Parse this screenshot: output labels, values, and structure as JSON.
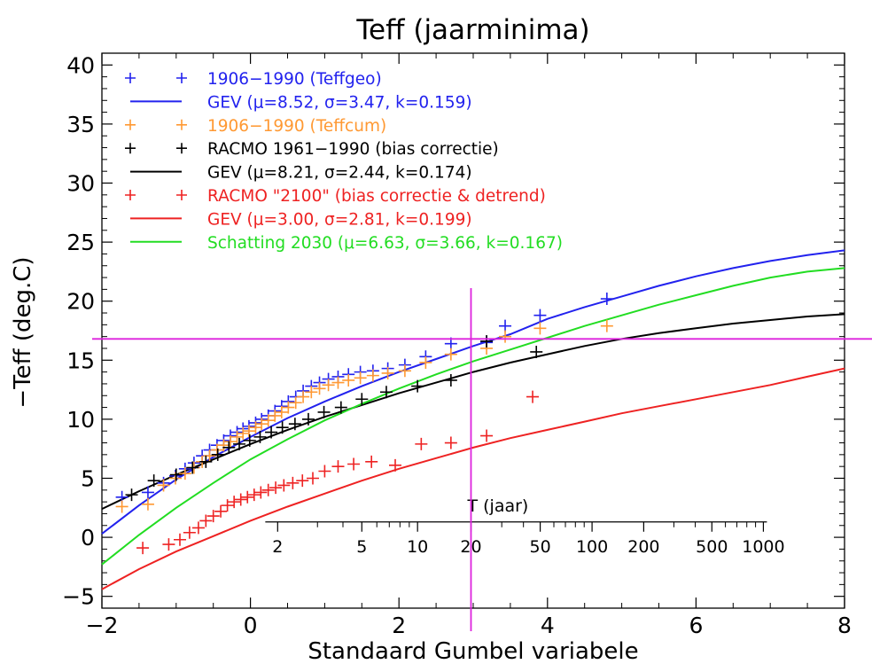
{
  "chart_data": {
    "type": "scatter",
    "title": "Teff (jaarminima)",
    "xlabel": "Standaard Gumbel variabele",
    "ylabel": "−Teff (deg.C)",
    "xlim": [
      -2,
      8
    ],
    "ylim": [
      -6,
      41
    ],
    "xticks": [
      -2,
      0,
      2,
      4,
      6,
      8
    ],
    "yticks": [
      -5,
      0,
      5,
      10,
      15,
      20,
      25,
      30,
      35,
      40
    ],
    "tick_labels_x": [
      "−2",
      "0",
      "2",
      "4",
      "6",
      "8"
    ],
    "tick_labels_y": [
      "−5",
      "0",
      "5",
      "10",
      "15",
      "20",
      "25",
      "30",
      "35",
      "40"
    ],
    "grid": false,
    "legend_position": "top-left",
    "colors": {
      "blue": "#2222ee",
      "orange": "#ff9933",
      "black": "#000000",
      "red": "#ee2222",
      "green": "#22dd22",
      "magenta": "#dd22dd"
    },
    "reference_lines": {
      "horizontal_y": 16.8,
      "vertical_x": 2.97
    },
    "return_period_axis": {
      "label": "T (jaar)",
      "y_value": 1.3,
      "ticks": [
        2,
        5,
        10,
        20,
        50,
        100,
        200,
        500,
        1000
      ],
      "tick_labels": [
        "2",
        "5",
        "10",
        "20",
        "50",
        "100",
        "200",
        "500",
        "1000"
      ]
    },
    "series": [
      {
        "name": "1906−1990 (Teffgeo)",
        "kind": "points",
        "color": "#2222ee",
        "x": [
          -1.73,
          -1.38,
          -1.17,
          -1.01,
          -0.88,
          -0.76,
          -0.65,
          -0.55,
          -0.45,
          -0.36,
          -0.27,
          -0.18,
          -0.1,
          -0.02,
          0.07,
          0.15,
          0.24,
          0.33,
          0.42,
          0.51,
          0.61,
          0.71,
          0.82,
          0.93,
          1.05,
          1.18,
          1.32,
          1.48,
          1.65,
          1.85,
          2.08,
          2.36,
          2.7,
          3.18,
          3.43,
          3.9,
          4.8
        ],
        "y": [
          3.4,
          3.8,
          4.6,
          5.2,
          5.8,
          6.3,
          6.9,
          7.4,
          7.8,
          8.2,
          8.6,
          8.9,
          9.2,
          9.4,
          9.7,
          10.0,
          10.3,
          10.7,
          11.1,
          11.5,
          11.9,
          12.4,
          12.8,
          13.1,
          13.4,
          13.6,
          13.8,
          14.0,
          14.1,
          14.3,
          14.6,
          15.3,
          16.4,
          16.5,
          17.9,
          18.8,
          20.2
        ]
      },
      {
        "name": "GEV (μ=8.52, σ=3.47, k=0.159)",
        "kind": "line",
        "color": "#2222ee",
        "x": [
          -2,
          -1.5,
          -1,
          -0.5,
          0,
          0.5,
          1,
          1.5,
          2,
          2.5,
          3,
          3.5,
          4,
          4.5,
          5,
          5.5,
          6,
          6.5,
          7,
          7.5,
          8
        ],
        "y": [
          0.3,
          2.7,
          4.9,
          6.8,
          8.5,
          10.1,
          11.5,
          12.8,
          14.0,
          15.1,
          16.2,
          17.2,
          18.5,
          19.5,
          20.4,
          21.3,
          22.1,
          22.8,
          23.4,
          23.9,
          24.3
        ]
      },
      {
        "name": "1906−1990 (Teffcum)",
        "kind": "points",
        "color": "#ff9933",
        "x": [
          -1.73,
          -1.38,
          -1.17,
          -1.01,
          -0.88,
          -0.76,
          -0.65,
          -0.55,
          -0.45,
          -0.36,
          -0.27,
          -0.18,
          -0.1,
          -0.02,
          0.07,
          0.15,
          0.24,
          0.33,
          0.42,
          0.51,
          0.61,
          0.71,
          0.82,
          0.93,
          1.05,
          1.18,
          1.32,
          1.48,
          1.65,
          1.85,
          2.08,
          2.36,
          2.7,
          3.18,
          3.43,
          3.9,
          4.8
        ],
        "y": [
          2.6,
          2.8,
          4.4,
          5.0,
          5.4,
          5.9,
          6.4,
          6.9,
          7.4,
          7.8,
          8.1,
          8.5,
          8.8,
          9.0,
          9.3,
          9.6,
          9.9,
          10.3,
          10.6,
          11.0,
          11.4,
          11.9,
          12.3,
          12.6,
          12.9,
          13.1,
          13.3,
          13.5,
          13.7,
          13.9,
          14.1,
          14.8,
          15.5,
          16.0,
          17.0,
          17.7,
          17.9
        ]
      },
      {
        "name": "RACMO 1961−1990 (bias correctie)",
        "kind": "points",
        "color": "#000000",
        "x": [
          -1.6,
          -1.3,
          -1.0,
          -0.78,
          -0.6,
          -0.44,
          -0.29,
          -0.15,
          -0.01,
          0.13,
          0.28,
          0.43,
          0.6,
          0.78,
          0.99,
          1.22,
          1.5,
          1.83,
          2.25,
          2.7,
          3.18,
          3.85
        ],
        "y": [
          3.6,
          4.8,
          5.3,
          5.9,
          6.4,
          7.0,
          7.6,
          7.9,
          8.2,
          8.5,
          8.9,
          9.3,
          9.6,
          10.0,
          10.6,
          11.0,
          11.7,
          12.3,
          12.8,
          13.3,
          16.6,
          15.7
        ]
      },
      {
        "name": "GEV (μ=8.21, σ=2.44, k=0.174)",
        "kind": "line",
        "color": "#000000",
        "x": [
          -2,
          -1.5,
          -1,
          -0.5,
          0,
          0.5,
          1,
          1.5,
          2,
          2.5,
          3,
          3.5,
          4,
          4.5,
          5,
          5.5,
          6,
          6.5,
          7,
          7.5,
          8
        ],
        "y": [
          2.4,
          3.9,
          5.3,
          6.6,
          7.9,
          9.1,
          10.2,
          11.2,
          12.2,
          13.1,
          14.0,
          14.8,
          15.5,
          16.2,
          16.8,
          17.3,
          17.7,
          18.1,
          18.4,
          18.7,
          18.9
        ]
      },
      {
        "name": "RACMO \"2100\" (bias correctie & detrend)",
        "kind": "points",
        "color": "#ee2222",
        "x": [
          -1.45,
          -1.1,
          -0.95,
          -0.82,
          -0.7,
          -0.6,
          -0.5,
          -0.4,
          -0.31,
          -0.22,
          -0.13,
          -0.04,
          0.05,
          0.14,
          0.24,
          0.34,
          0.45,
          0.57,
          0.7,
          0.84,
          1.0,
          1.18,
          1.39,
          1.63,
          1.95,
          2.3,
          2.7,
          3.18,
          3.8
        ],
        "y": [
          -0.9,
          -0.6,
          -0.2,
          0.4,
          0.8,
          1.4,
          1.8,
          2.2,
          2.7,
          3.0,
          3.2,
          3.4,
          3.6,
          3.8,
          4.0,
          4.2,
          4.4,
          4.6,
          4.8,
          5.0,
          5.6,
          6.0,
          6.2,
          6.4,
          6.1,
          7.9,
          8.0,
          8.6,
          11.9
        ]
      },
      {
        "name": "GEV (μ=3.00, σ=2.81, k=0.199)",
        "kind": "line",
        "color": "#ee2222",
        "x": [
          -2,
          -1.5,
          -1,
          -0.5,
          0,
          0.5,
          1,
          1.5,
          2,
          2.5,
          3,
          3.5,
          4,
          4.5,
          5,
          5.5,
          6,
          6.5,
          7,
          7.5,
          8
        ],
        "y": [
          -4.4,
          -2.7,
          -1.2,
          0.1,
          1.4,
          2.6,
          3.7,
          4.8,
          5.8,
          6.7,
          7.6,
          8.4,
          9.1,
          9.8,
          10.5,
          11.1,
          11.7,
          12.3,
          12.9,
          13.6,
          14.3
        ]
      },
      {
        "name": "Schatting 2030 (μ=6.63, σ=3.66, k=0.167)",
        "kind": "line",
        "color": "#22dd22",
        "x": [
          -2,
          -1.5,
          -1,
          -0.5,
          0,
          0.5,
          1,
          1.5,
          2,
          2.5,
          3,
          3.5,
          4,
          4.5,
          5,
          5.5,
          6,
          6.5,
          7,
          7.5,
          8
        ],
        "y": [
          -2.3,
          0.2,
          2.5,
          4.6,
          6.6,
          8.3,
          9.9,
          11.3,
          12.6,
          13.8,
          14.9,
          15.9,
          16.9,
          17.9,
          18.8,
          19.7,
          20.5,
          21.3,
          22.0,
          22.5,
          22.8
        ]
      }
    ]
  }
}
